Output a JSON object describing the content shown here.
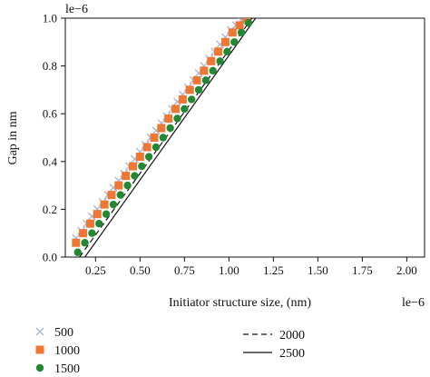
{
  "chart_data": {
    "type": "scatter",
    "ylabel": "Gap in nm",
    "xlabel": "Initiator structure size, (nm)",
    "y_multiplier": "le−6",
    "x_multiplier": "le−6",
    "xlim": [
      0.08,
      2.1
    ],
    "ylim": [
      0,
      1.0
    ],
    "xticks": [
      "0.25",
      "0.50",
      "0.75",
      "1.00",
      "1.25",
      "1.50",
      "1.75",
      "2.00"
    ],
    "xtick_values": [
      0.25,
      0.5,
      0.75,
      1.0,
      1.25,
      1.5,
      1.75,
      2.0
    ],
    "yticks": [
      "0.0",
      "0.2",
      "0.4",
      "0.6",
      "0.8",
      "1.0"
    ],
    "ytick_values": [
      0.0,
      0.2,
      0.4,
      0.6,
      0.8,
      1.0
    ],
    "grid": false,
    "legend_position": "below",
    "series": [
      {
        "name": "500",
        "kind": "marker",
        "marker": "x",
        "color": "#aab8d8",
        "x": [
          0.14,
          0.17,
          0.2,
          0.23,
          0.26,
          0.29,
          0.32,
          0.35,
          0.38,
          0.41,
          0.44,
          0.47,
          0.5,
          0.53,
          0.56,
          0.59,
          0.62,
          0.65,
          0.68,
          0.71,
          0.74,
          0.77,
          0.8,
          0.83,
          0.86,
          0.89,
          0.92,
          0.95,
          0.98,
          1.01,
          1.04,
          1.07,
          1.1
        ],
        "y": [
          0.08,
          0.11,
          0.14,
          0.17,
          0.2,
          0.23,
          0.26,
          0.29,
          0.32,
          0.35,
          0.38,
          0.41,
          0.44,
          0.47,
          0.5,
          0.53,
          0.56,
          0.59,
          0.62,
          0.65,
          0.68,
          0.71,
          0.74,
          0.77,
          0.8,
          0.83,
          0.86,
          0.89,
          0.92,
          0.95,
          0.97,
          0.99,
          1.0
        ]
      },
      {
        "name": "1000",
        "kind": "marker",
        "marker": "square",
        "color": "#ee7733",
        "x": [
          0.14,
          0.18,
          0.22,
          0.26,
          0.3,
          0.34,
          0.38,
          0.42,
          0.46,
          0.5,
          0.54,
          0.58,
          0.62,
          0.66,
          0.7,
          0.74,
          0.78,
          0.82,
          0.86,
          0.9,
          0.94,
          0.98,
          1.02,
          1.06,
          1.1
        ],
        "y": [
          0.06,
          0.1,
          0.14,
          0.18,
          0.22,
          0.26,
          0.3,
          0.34,
          0.38,
          0.42,
          0.46,
          0.5,
          0.54,
          0.58,
          0.62,
          0.66,
          0.7,
          0.74,
          0.78,
          0.82,
          0.86,
          0.9,
          0.94,
          0.97,
          1.0
        ],
        "y_note": ""
      },
      {
        "name": "1500",
        "kind": "marker",
        "marker": "circle",
        "color": "#228833",
        "x": [
          0.15,
          0.19,
          0.23,
          0.27,
          0.31,
          0.35,
          0.39,
          0.43,
          0.47,
          0.51,
          0.55,
          0.59,
          0.63,
          0.67,
          0.71,
          0.75,
          0.79,
          0.83,
          0.87,
          0.91,
          0.95,
          0.99,
          1.03,
          1.07,
          1.11
        ],
        "y": [
          0.02,
          0.06,
          0.1,
          0.14,
          0.18,
          0.22,
          0.26,
          0.3,
          0.34,
          0.38,
          0.42,
          0.46,
          0.5,
          0.54,
          0.58,
          0.62,
          0.66,
          0.7,
          0.74,
          0.78,
          0.82,
          0.86,
          0.9,
          0.94,
          0.98
        ]
      },
      {
        "name": "2000",
        "kind": "line",
        "dash": "6,4",
        "color": "#111111",
        "x": [
          0.16,
          1.13
        ],
        "y": [
          0.0,
          1.0
        ]
      },
      {
        "name": "2500",
        "kind": "line",
        "dash": "",
        "color": "#111111",
        "x": [
          0.19,
          1.15
        ],
        "y": [
          0.0,
          1.0
        ]
      }
    ]
  }
}
